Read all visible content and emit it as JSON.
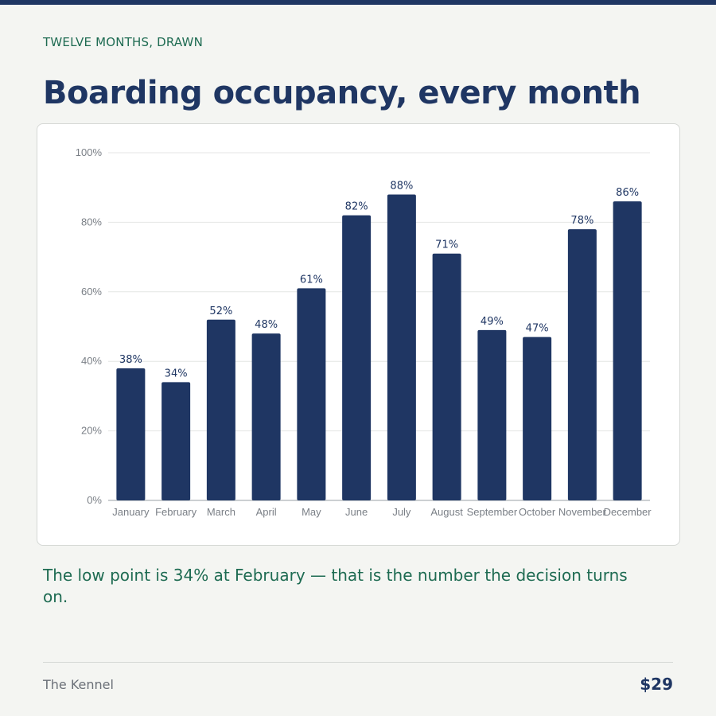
{
  "header": {
    "eyebrow": "TWELVE MONTHS, DRAWN",
    "title": "Boarding occupancy, every month"
  },
  "chart_data": {
    "type": "bar",
    "categories": [
      "January",
      "February",
      "March",
      "April",
      "May",
      "June",
      "July",
      "August",
      "September",
      "October",
      "November",
      "December"
    ],
    "values": [
      38,
      34,
      52,
      48,
      61,
      82,
      88,
      71,
      49,
      47,
      78,
      86
    ],
    "value_labels": [
      "38%",
      "34%",
      "52%",
      "48%",
      "61%",
      "82%",
      "88%",
      "71%",
      "49%",
      "47%",
      "78%",
      "86%"
    ],
    "yticks": [
      0,
      20,
      40,
      60,
      80,
      100
    ],
    "ytick_labels": [
      "0%",
      "20%",
      "40%",
      "60%",
      "80%",
      "100%"
    ],
    "ylim": [
      0,
      100
    ],
    "xlabel": "",
    "ylabel": "",
    "grid": true,
    "bar_color": "#1f3663"
  },
  "caption": "The low point is 34% at February — that is the number the decision turns on.",
  "footer": {
    "brand": "The Kennel",
    "price": "$29"
  }
}
